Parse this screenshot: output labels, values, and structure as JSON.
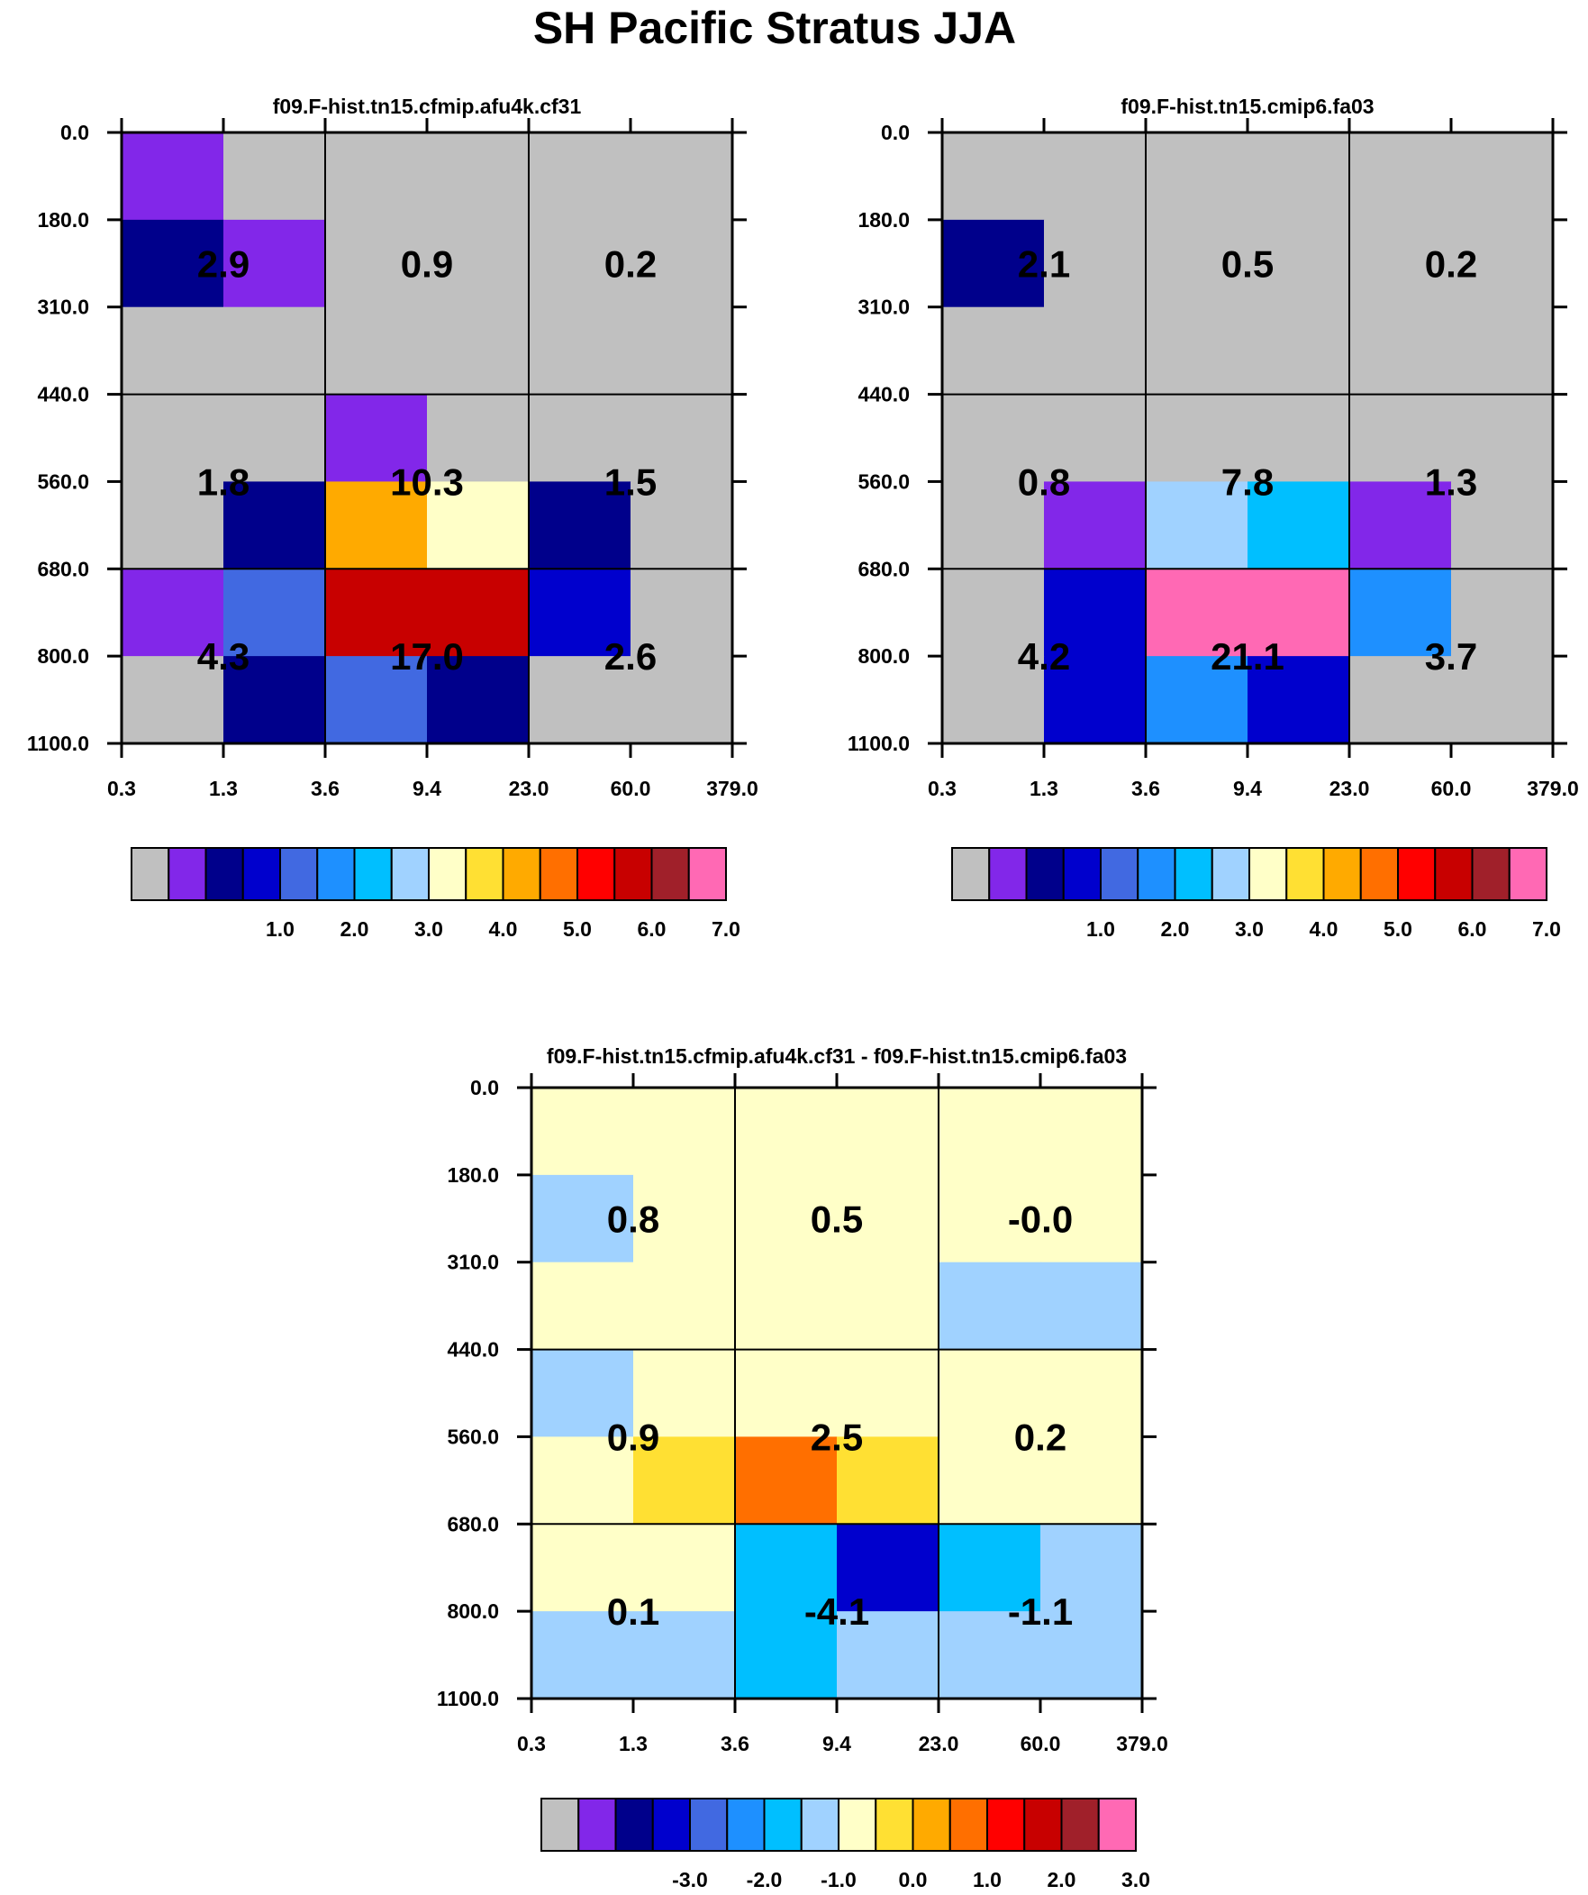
{
  "title": "SH Pacific Stratus JJA",
  "chart_data": [
    {
      "type": "heatmap",
      "title": "f09.F-hist.tn15.cfmip.afu4k.cf31",
      "x_ticks": [
        "0.3",
        "1.3",
        "3.6",
        "9.4",
        "23.0",
        "60.0",
        "379.0"
      ],
      "y_ticks": [
        "0.0",
        "180.0",
        "310.0",
        "440.0",
        "560.0",
        "680.0",
        "800.0",
        "1100.0"
      ],
      "cells": [
        [
          1,
          0,
          0,
          0,
          0,
          0
        ],
        [
          2,
          1,
          0,
          0,
          0,
          0
        ],
        [
          0,
          0,
          0,
          0,
          0,
          0
        ],
        [
          0,
          0,
          1,
          0,
          0,
          0
        ],
        [
          0,
          2,
          10,
          8,
          2,
          0
        ],
        [
          1,
          4,
          13,
          13,
          3,
          0
        ],
        [
          0,
          2,
          4,
          2,
          0,
          0
        ]
      ],
      "block_values": [
        [
          "2.9",
          "0.9",
          "0.2"
        ],
        [
          "1.8",
          "10.3",
          "1.5"
        ],
        [
          "4.3",
          "17.0",
          "2.6"
        ]
      ],
      "colorbar": {
        "colors": [
          "#c0c0c0",
          "#8227e9",
          "#00008b",
          "#0000cd",
          "#4169e1",
          "#1e90ff",
          "#00bfff",
          "#a0d2ff",
          "#ffffc8",
          "#ffe033",
          "#ffaa00",
          "#ff6f00",
          "#ff0000",
          "#c80000",
          "#a0202a",
          "#ff69b4"
        ],
        "labels": [
          "1.0",
          "2.0",
          "3.0",
          "4.0",
          "5.0",
          "6.0",
          "7.0"
        ]
      }
    },
    {
      "type": "heatmap",
      "title": "f09.F-hist.tn15.cmip6.fa03",
      "x_ticks": [
        "0.3",
        "1.3",
        "3.6",
        "9.4",
        "23.0",
        "60.0",
        "379.0"
      ],
      "y_ticks": [
        "0.0",
        "180.0",
        "310.0",
        "440.0",
        "560.0",
        "680.0",
        "800.0",
        "1100.0"
      ],
      "cells": [
        [
          0,
          0,
          0,
          0,
          0,
          0
        ],
        [
          2,
          0,
          0,
          0,
          0,
          0
        ],
        [
          0,
          0,
          0,
          0,
          0,
          0
        ],
        [
          0,
          0,
          0,
          0,
          0,
          0
        ],
        [
          0,
          1,
          7,
          6,
          1,
          0
        ],
        [
          0,
          3,
          15,
          15,
          5,
          0
        ],
        [
          0,
          3,
          5,
          3,
          0,
          0
        ]
      ],
      "block_values": [
        [
          "2.1",
          "0.5",
          "0.2"
        ],
        [
          "0.8",
          "7.8",
          "1.3"
        ],
        [
          "4.2",
          "21.1",
          "3.7"
        ]
      ],
      "colorbar": {
        "colors": [
          "#c0c0c0",
          "#8227e9",
          "#00008b",
          "#0000cd",
          "#4169e1",
          "#1e90ff",
          "#00bfff",
          "#a0d2ff",
          "#ffffc8",
          "#ffe033",
          "#ffaa00",
          "#ff6f00",
          "#ff0000",
          "#c80000",
          "#a0202a",
          "#ff69b4"
        ],
        "labels": [
          "1.0",
          "2.0",
          "3.0",
          "4.0",
          "5.0",
          "6.0",
          "7.0"
        ]
      }
    },
    {
      "type": "heatmap",
      "title": "f09.F-hist.tn15.cfmip.afu4k.cf31 - f09.F-hist.tn15.cmip6.fa03",
      "x_ticks": [
        "0.3",
        "1.3",
        "3.6",
        "9.4",
        "23.0",
        "60.0",
        "379.0"
      ],
      "y_ticks": [
        "0.0",
        "180.0",
        "310.0",
        "440.0",
        "560.0",
        "680.0",
        "800.0",
        "1100.0"
      ],
      "cells": [
        [
          8,
          8,
          8,
          8,
          8,
          8
        ],
        [
          7,
          8,
          8,
          8,
          8,
          8
        ],
        [
          8,
          8,
          8,
          8,
          7,
          7
        ],
        [
          7,
          8,
          8,
          8,
          8,
          8
        ],
        [
          8,
          9,
          11,
          9,
          8,
          8
        ],
        [
          8,
          8,
          6,
          3,
          6,
          7
        ],
        [
          7,
          7,
          6,
          7,
          7,
          7
        ]
      ],
      "block_values": [
        [
          "0.8",
          "0.5",
          "-0.0"
        ],
        [
          "0.9",
          "2.5",
          "0.2"
        ],
        [
          "0.1",
          "-4.1",
          "-1.1"
        ]
      ],
      "colorbar": {
        "colors": [
          "#c0c0c0",
          "#8227e9",
          "#00008b",
          "#0000cd",
          "#4169e1",
          "#1e90ff",
          "#00bfff",
          "#a0d2ff",
          "#ffffc8",
          "#ffe033",
          "#ffaa00",
          "#ff6f00",
          "#ff0000",
          "#c80000",
          "#a0202a",
          "#ff69b4"
        ],
        "labels": [
          "-3.0",
          "-2.0",
          "-1.0",
          "0.0",
          "1.0",
          "2.0",
          "3.0"
        ]
      }
    }
  ]
}
